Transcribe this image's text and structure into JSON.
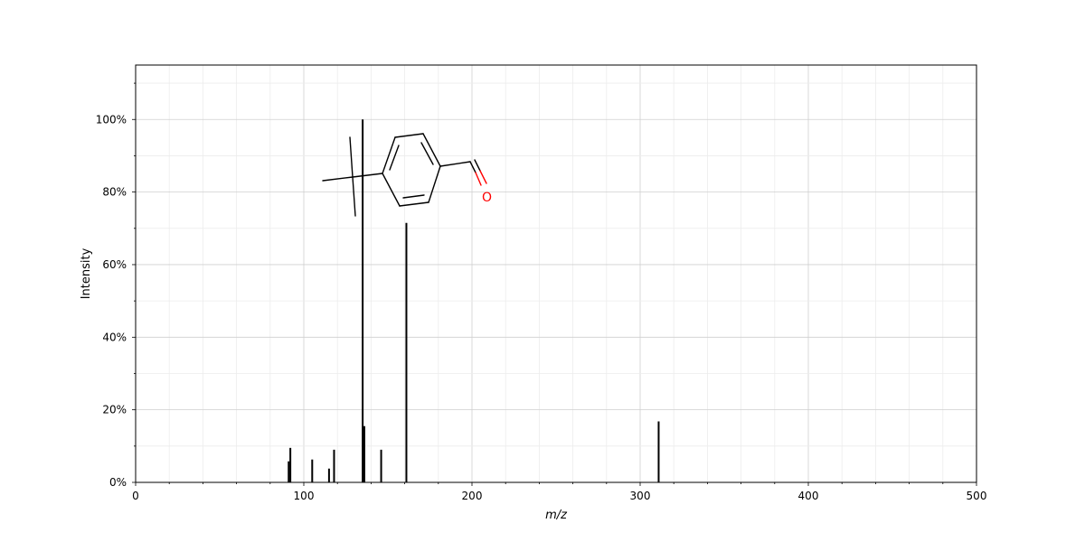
{
  "chart_data": {
    "type": "bar",
    "xlabel": "m/z",
    "ylabel": "Intensity",
    "xlim": [
      0,
      500
    ],
    "ylim": [
      0,
      115
    ],
    "x_ticks": [
      0,
      100,
      200,
      300,
      400,
      500
    ],
    "y_ticks": [
      0,
      20,
      40,
      60,
      80,
      100
    ],
    "y_tick_suffix": "%",
    "grid": true,
    "peaks": [
      {
        "mz": 91,
        "intensity": 5.8
      },
      {
        "mz": 92,
        "intensity": 9.5
      },
      {
        "mz": 105,
        "intensity": 6.3
      },
      {
        "mz": 115,
        "intensity": 3.8
      },
      {
        "mz": 118,
        "intensity": 9.0
      },
      {
        "mz": 135,
        "intensity": 100
      },
      {
        "mz": 136,
        "intensity": 15.5
      },
      {
        "mz": 146,
        "intensity": 9.0
      },
      {
        "mz": 161,
        "intensity": 71.5
      },
      {
        "mz": 311,
        "intensity": 16.8
      }
    ],
    "structure": {
      "name": "4-tert-butylbenzaldehyde",
      "atom_label": "O"
    }
  }
}
